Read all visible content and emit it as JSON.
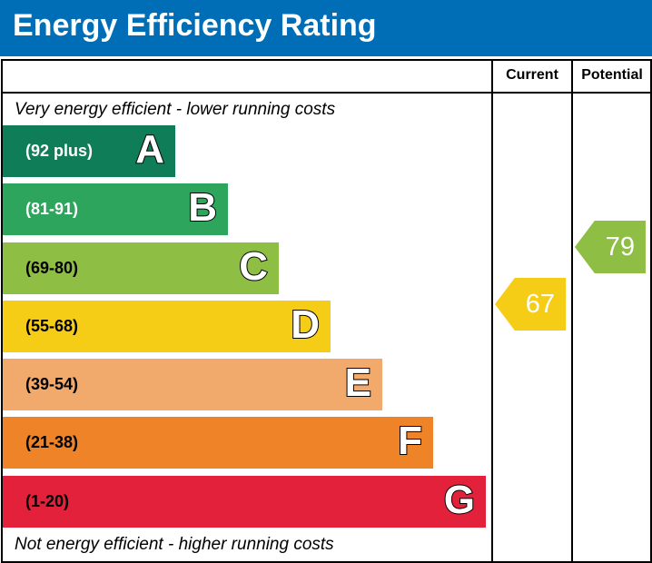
{
  "title": "Energy Efficiency Rating",
  "columns": {
    "current": "Current",
    "potential": "Potential"
  },
  "top_note": "Very energy efficient - lower running costs",
  "bottom_note": "Not energy efficient - higher running costs",
  "chart_data": {
    "type": "bar",
    "bands": [
      {
        "letter": "A",
        "range": "(92 plus)",
        "color": "#0f7d58",
        "text_color": "#ffffff"
      },
      {
        "letter": "B",
        "range": "(81-91)",
        "color": "#2da55d",
        "text_color": "#ffffff"
      },
      {
        "letter": "C",
        "range": "(69-80)",
        "color": "#8fbe44",
        "text_color": "#000000"
      },
      {
        "letter": "D",
        "range": "(55-68)",
        "color": "#f6cd16",
        "text_color": "#000000"
      },
      {
        "letter": "E",
        "range": "(39-54)",
        "color": "#f2aa6c",
        "text_color": "#000000"
      },
      {
        "letter": "F",
        "range": "(21-38)",
        "color": "#ee8327",
        "text_color": "#000000"
      },
      {
        "letter": "G",
        "range": "(1-20)",
        "color": "#e3213b",
        "text_color": "#000000"
      }
    ],
    "current": {
      "value": "67",
      "band": "D",
      "color": "#f6cd16"
    },
    "potential": {
      "value": "79",
      "band": "C",
      "color": "#8fbe44"
    }
  }
}
